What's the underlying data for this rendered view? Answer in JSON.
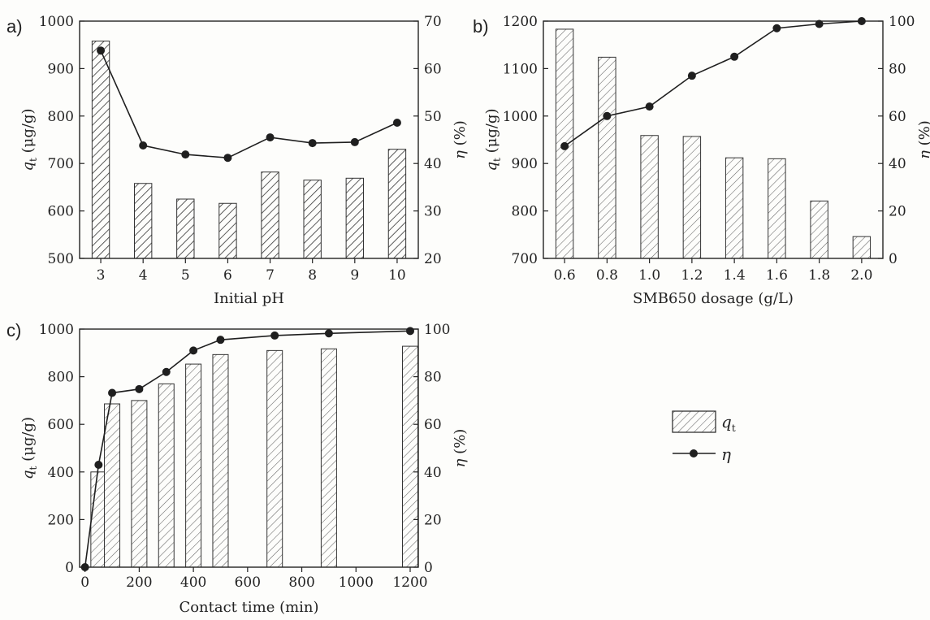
{
  "colors": {
    "axis": "#222222",
    "hatch_dark": "#333333",
    "hatch_light": "#555555",
    "line": "#1f1f1f"
  },
  "legend": {
    "bar_label": "q",
    "bar_label_sub": "t",
    "line_label": "η"
  },
  "chart_data": [
    {
      "panel": "a)",
      "type": "bar",
      "secondary_type": "line",
      "xlabel": "Initial pH",
      "ylabel_left_italic": "q",
      "ylabel_left_sub": "t",
      "ylabel_left_unit": " (μg/g)",
      "ylabel_right_italic": "η",
      "ylabel_right_unit": " (%)",
      "categories": [
        "3",
        "4",
        "5",
        "6",
        "7",
        "8",
        "9",
        "10"
      ],
      "series": [
        {
          "name": "q",
          "axis": "left",
          "type": "bar",
          "values": [
            958,
            658,
            625,
            616,
            682,
            665,
            669,
            730
          ]
        },
        {
          "name": "η",
          "axis": "right",
          "type": "line",
          "values": [
            63.8,
            43.8,
            41.9,
            41.2,
            45.5,
            44.3,
            44.5,
            48.6
          ]
        }
      ],
      "ylim_left": [
        500,
        1000
      ],
      "yticks_left": [
        500,
        600,
        700,
        800,
        900,
        1000
      ],
      "ylim_right": [
        20,
        70
      ],
      "yticks_right": [
        20,
        30,
        40,
        50,
        60,
        70
      ],
      "hatch": "dark",
      "grid": false
    },
    {
      "panel": "b)",
      "type": "bar",
      "secondary_type": "line",
      "xlabel": "SMB650 dosage (g/L)",
      "ylabel_left_italic": "q",
      "ylabel_left_sub": "t",
      "ylabel_left_unit": " (μg/g)",
      "ylabel_right_italic": "η",
      "ylabel_right_unit": " (%)",
      "categories": [
        "0.6",
        "0.8",
        "1.0",
        "1.2",
        "1.4",
        "1.6",
        "1.8",
        "2.0"
      ],
      "series": [
        {
          "name": "q",
          "axis": "left",
          "type": "bar",
          "values": [
            1183,
            1124,
            959,
            957,
            912,
            910,
            821,
            746
          ]
        },
        {
          "name": "η",
          "axis": "right",
          "type": "line",
          "values": [
            47.3,
            60.0,
            64.0,
            77.0,
            85.0,
            97.0,
            98.8,
            100.0
          ]
        }
      ],
      "ylim_left": [
        700,
        1200
      ],
      "yticks_left": [
        700,
        800,
        900,
        1000,
        1100,
        1200
      ],
      "ylim_right": [
        0,
        100
      ],
      "yticks_right": [
        0,
        20,
        40,
        60,
        80,
        100
      ],
      "hatch": "light",
      "grid": false
    },
    {
      "panel": "c)",
      "type": "bar",
      "secondary_type": "line",
      "xlabel": "Contact time (min)",
      "ylabel_left_italic": "q",
      "ylabel_left_sub": "t",
      "ylabel_left_unit": " (μg/g)",
      "ylabel_right_italic": "η",
      "ylabel_right_unit": " (%)",
      "x": [
        0,
        50,
        100,
        200,
        300,
        400,
        500,
        700,
        900,
        1200
      ],
      "xticks": [
        0,
        200,
        400,
        600,
        800,
        1000,
        1200
      ],
      "series": [
        {
          "name": "q",
          "axis": "left",
          "type": "bar",
          "x": [
            50,
            100,
            200,
            300,
            400,
            500,
            700,
            900,
            1200
          ],
          "values": [
            400,
            686,
            700,
            770,
            853,
            893,
            910,
            917,
            928
          ]
        },
        {
          "name": "η",
          "axis": "right",
          "type": "line",
          "x": [
            0,
            50,
            100,
            200,
            300,
            400,
            500,
            700,
            900,
            1200
          ],
          "values": [
            0,
            43,
            73.2,
            74.8,
            82,
            91,
            95.5,
            97.3,
            98.2,
            99.2
          ]
        }
      ],
      "xlim": [
        -20,
        1230
      ],
      "ylim_left": [
        0,
        1000
      ],
      "yticks_left": [
        0,
        200,
        400,
        600,
        800,
        1000
      ],
      "ylim_right": [
        0,
        100
      ],
      "yticks_right": [
        0,
        20,
        40,
        60,
        80,
        100
      ],
      "hatch": "light",
      "grid": false
    }
  ]
}
